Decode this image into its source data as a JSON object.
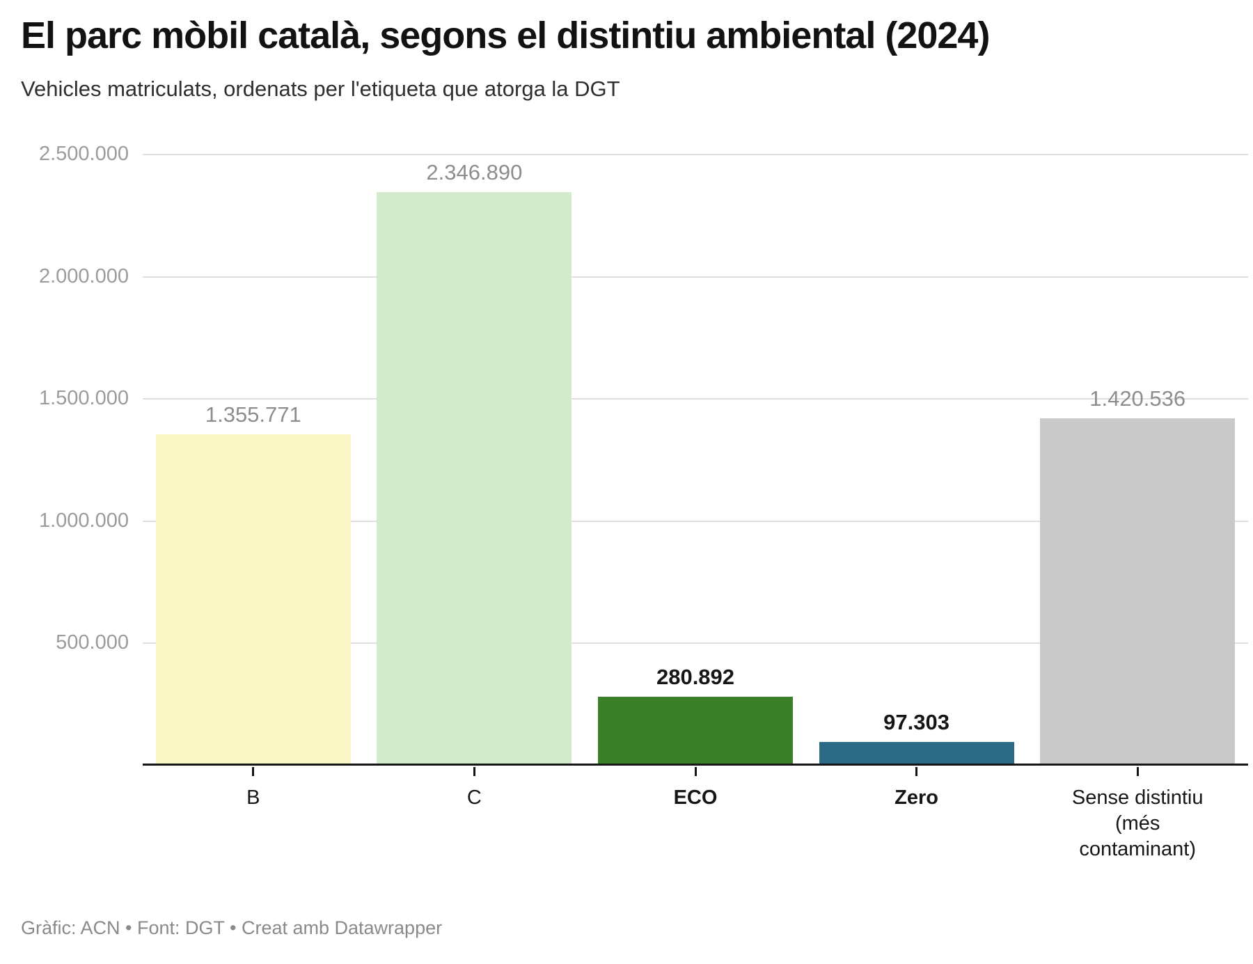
{
  "chart_data": {
    "type": "bar",
    "title": "El parc mòbil català, segons el distintiu ambiental (2024)",
    "subtitle": "Vehicles matriculats, ordenats per l'etiqueta que atorga la DGT",
    "footer": "Gràfic: ACN • Font: DGT • Creat amb Datawrapper",
    "categories": [
      "B",
      "C",
      "ECO",
      "Zero",
      "Sense distintiu (més contaminant)"
    ],
    "values": [
      1355771,
      2346890,
      280892,
      97303,
      1420536
    ],
    "value_labels": [
      "1.355.771",
      "2.346.890",
      "280.892",
      "97.303",
      "1.420.536"
    ],
    "bar_colors": [
      "#fbf6c5",
      "#d4eacd",
      "#3b8028",
      "#2b6a85",
      "#c9c9c9"
    ],
    "emphasized": [
      false,
      false,
      true,
      true,
      false
    ],
    "xlabel": "",
    "ylabel": "",
    "ylim": [
      0,
      2500000
    ],
    "yticks": [
      {
        "value": 500000,
        "label": "500.000"
      },
      {
        "value": 1000000,
        "label": "1.000.000"
      },
      {
        "value": 1500000,
        "label": "1.500.000"
      },
      {
        "value": 2000000,
        "label": "2.000.000"
      },
      {
        "value": 2500000,
        "label": "2.500.000"
      }
    ],
    "grid": "horizontal",
    "legend_position": "none",
    "colors": {
      "grid": "#dfdfdf",
      "axis_line": "#161616",
      "y_tick_label": "#9b9b9b",
      "value_label_muted": "#8d8d8d",
      "value_label_emphasis": "#161616",
      "title": "#121212",
      "subtitle": "#2e2e2e",
      "footer": "#8a8a8a",
      "background": "#ffffff"
    }
  }
}
